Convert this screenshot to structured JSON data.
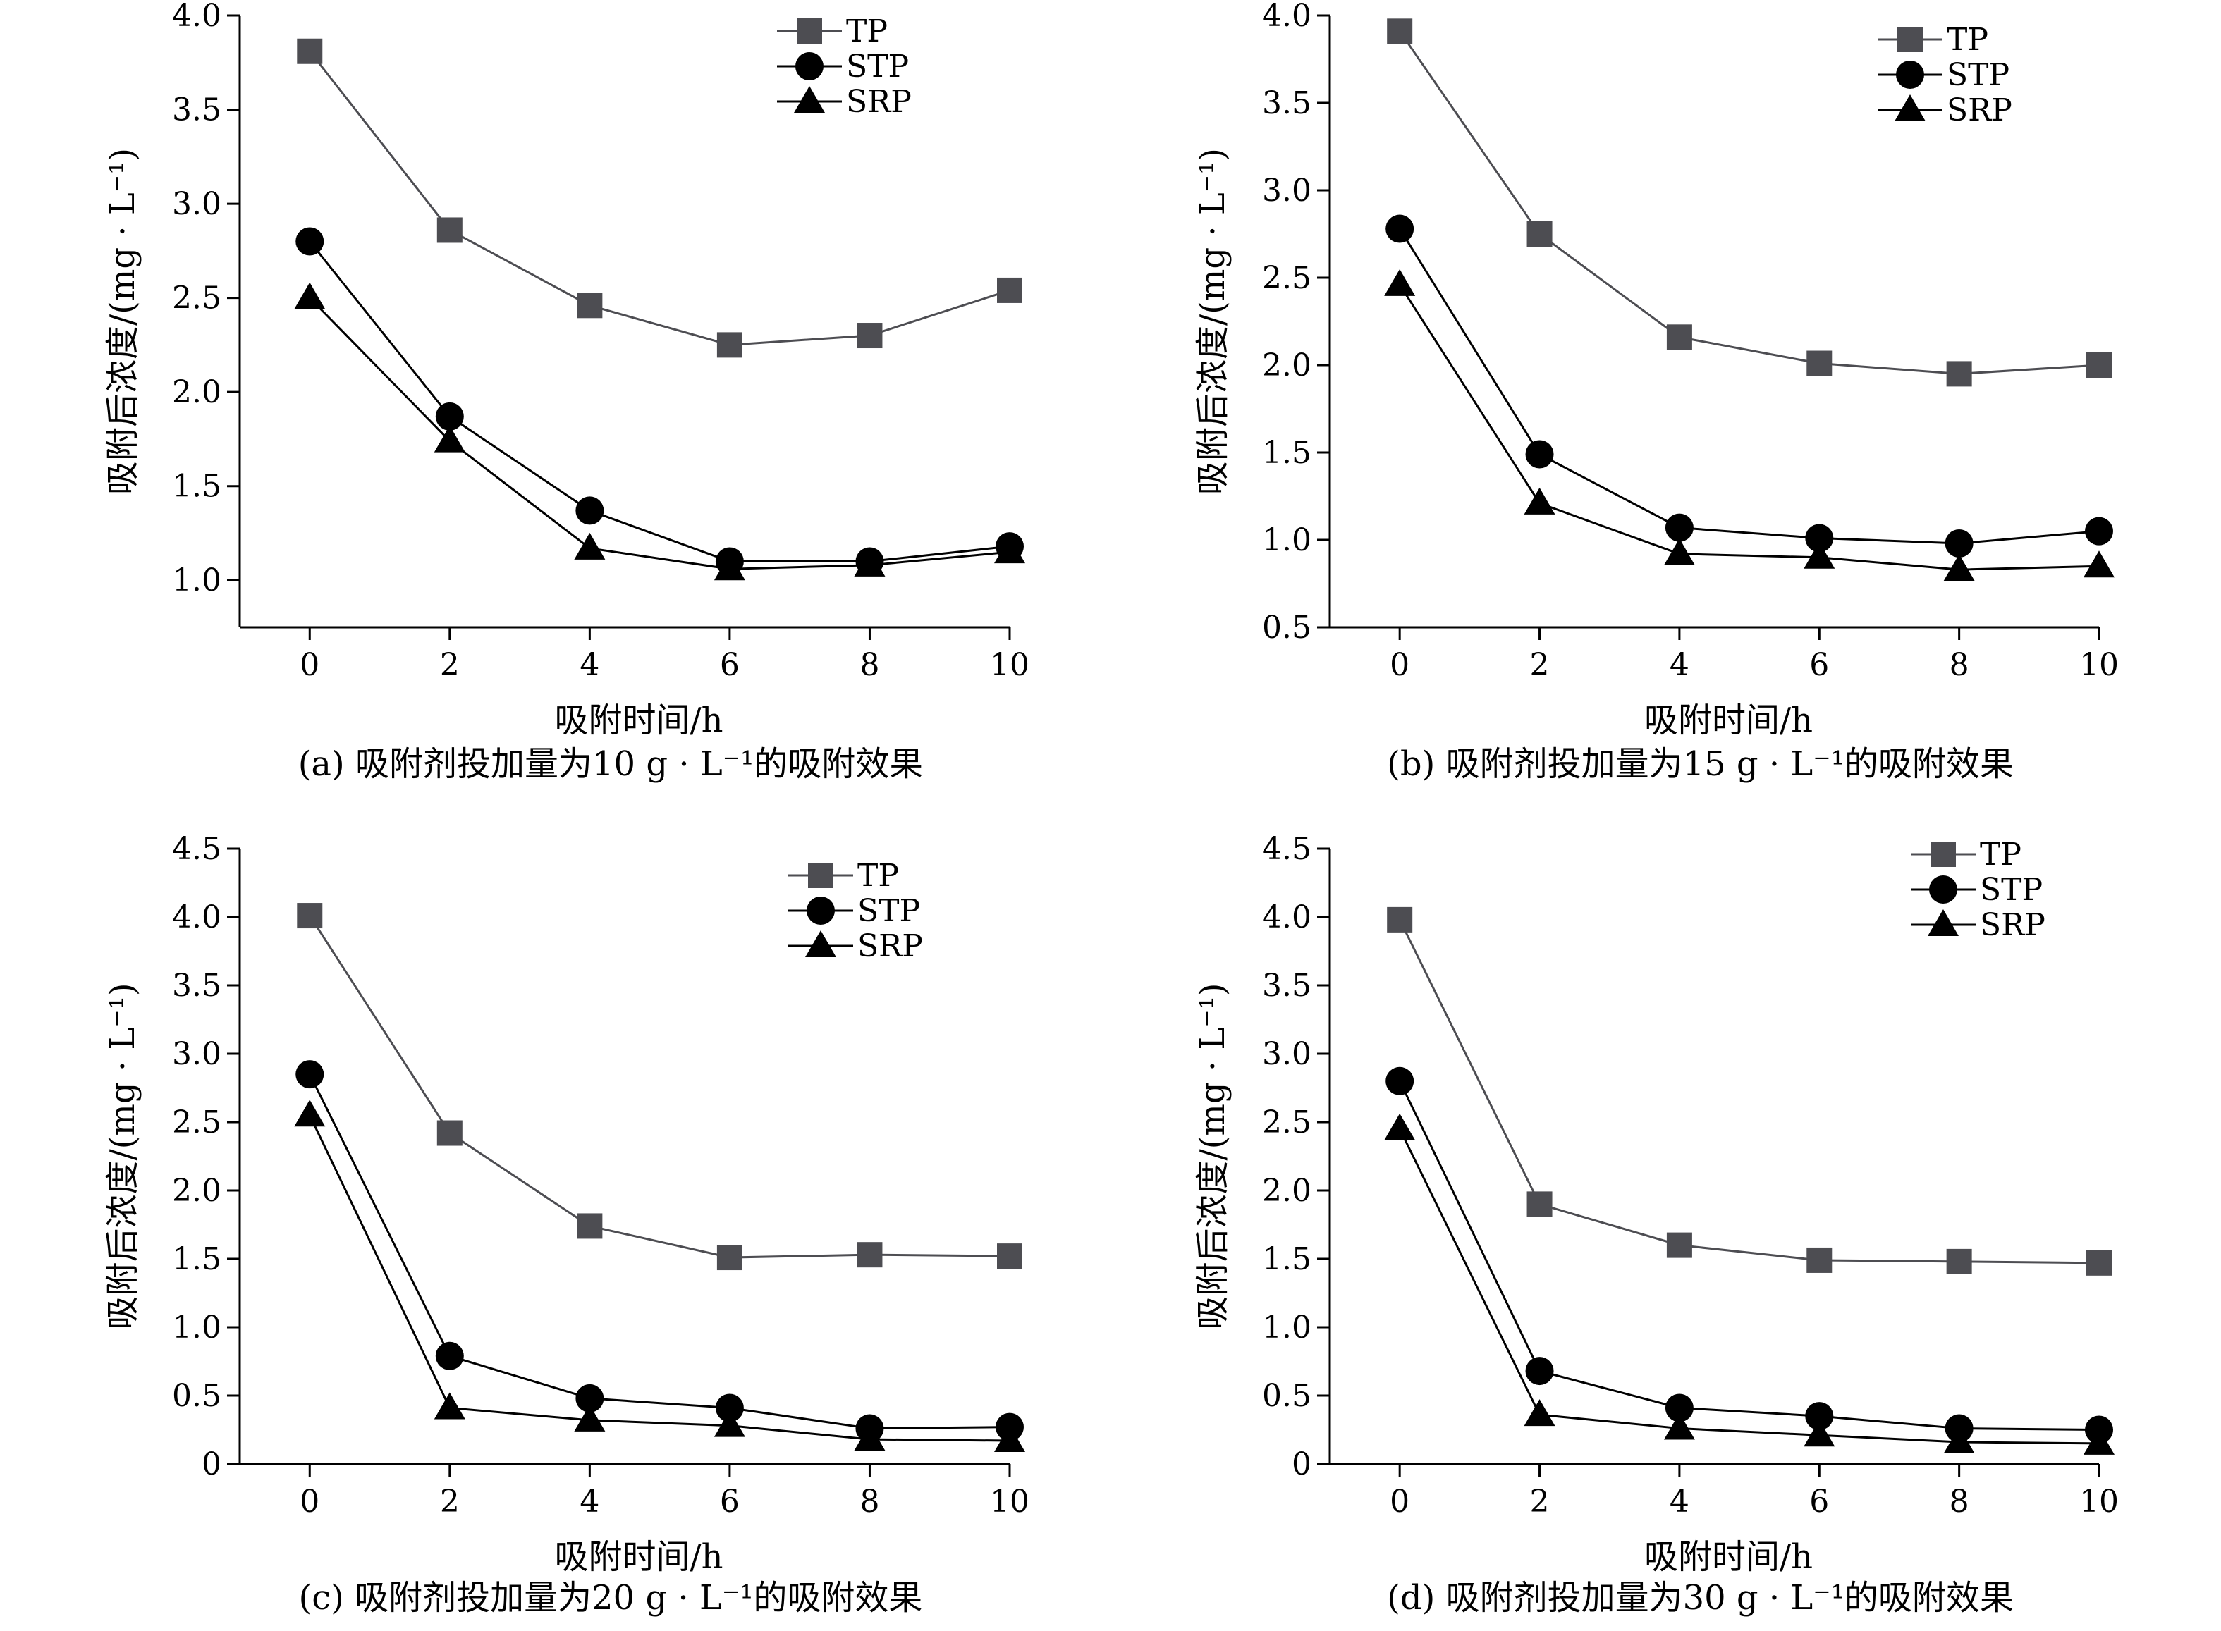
{
  "chart_data": [
    {
      "type": "line",
      "caption": "(a) 吸附剂投加量为10 g · L⁻¹的吸附效果",
      "xlabel": "吸附时间/h",
      "ylabel": "吸附后浓度/(mg · L⁻¹)",
      "x": [
        0,
        2,
        4,
        6,
        8,
        10
      ],
      "x_ticks": [
        "0",
        "2",
        "4",
        "6",
        "8",
        "10"
      ],
      "xlim": [
        -1,
        10
      ],
      "ylim": [
        0.75,
        4.0
      ],
      "y_ticks": [
        "1.0",
        "1.5",
        "2.0",
        "2.5",
        "3.0",
        "3.5",
        "4.0"
      ],
      "y_tick_values": [
        1.0,
        1.5,
        2.0,
        2.5,
        3.0,
        3.5,
        4.0
      ],
      "legend_position": "top-right",
      "series": [
        {
          "name": "TP",
          "marker": "square",
          "color": "#4d4d52",
          "values": [
            3.81,
            2.86,
            2.46,
            2.25,
            2.3,
            2.54
          ]
        },
        {
          "name": "STP",
          "marker": "circle",
          "color": "#000000",
          "values": [
            2.8,
            1.87,
            1.37,
            1.1,
            1.1,
            1.18
          ]
        },
        {
          "name": "SRP",
          "marker": "triangle",
          "color": "#000000",
          "values": [
            2.5,
            1.74,
            1.17,
            1.06,
            1.08,
            1.15
          ]
        }
      ]
    },
    {
      "type": "line",
      "caption": "(b) 吸附剂投加量为15 g · L⁻¹的吸附效果",
      "xlabel": "吸附时间/h",
      "ylabel": "吸附后浓度/(mg · L⁻¹)",
      "x": [
        0,
        2,
        4,
        6,
        8,
        10
      ],
      "x_ticks": [
        "0",
        "2",
        "4",
        "6",
        "8",
        "10"
      ],
      "xlim": [
        -1,
        10
      ],
      "ylim": [
        0.5,
        4.0
      ],
      "y_ticks": [
        "0.5",
        "1.0",
        "1.5",
        "2.0",
        "2.5",
        "3.0",
        "3.5",
        "4.0"
      ],
      "y_tick_values": [
        0.5,
        1.0,
        1.5,
        2.0,
        2.5,
        3.0,
        3.5,
        4.0
      ],
      "legend_position": "top-right",
      "series": [
        {
          "name": "TP",
          "marker": "square",
          "color": "#4d4d52",
          "values": [
            3.91,
            2.75,
            2.16,
            2.01,
            1.95,
            2.0
          ]
        },
        {
          "name": "STP",
          "marker": "circle",
          "color": "#000000",
          "values": [
            2.78,
            1.49,
            1.07,
            1.01,
            0.98,
            1.05
          ]
        },
        {
          "name": "SRP",
          "marker": "triangle",
          "color": "#000000",
          "values": [
            2.46,
            1.21,
            0.92,
            0.9,
            0.83,
            0.85
          ]
        }
      ]
    },
    {
      "type": "line",
      "caption": "(c) 吸附剂投加量为20 g · L⁻¹的吸附效果",
      "xlabel": "吸附时间/h",
      "ylabel": "吸附后浓度/(mg · L⁻¹)",
      "x": [
        0,
        2,
        4,
        6,
        8,
        10
      ],
      "x_ticks": [
        "0",
        "2",
        "4",
        "6",
        "8",
        "10"
      ],
      "xlim": [
        -1,
        10
      ],
      "ylim": [
        0,
        4.5
      ],
      "y_ticks": [
        "0",
        "0.5",
        "1.0",
        "1.5",
        "2.0",
        "2.5",
        "3.0",
        "3.5",
        "4.0",
        "4.5"
      ],
      "y_tick_values": [
        0,
        0.5,
        1.0,
        1.5,
        2.0,
        2.5,
        3.0,
        3.5,
        4.0,
        4.5
      ],
      "legend_position": "top-right",
      "series": [
        {
          "name": "TP",
          "marker": "square",
          "color": "#4d4d52",
          "values": [
            4.01,
            2.42,
            1.74,
            1.51,
            1.53,
            1.52
          ]
        },
        {
          "name": "STP",
          "marker": "circle",
          "color": "#000000",
          "values": [
            2.85,
            0.79,
            0.48,
            0.41,
            0.26,
            0.27
          ]
        },
        {
          "name": "SRP",
          "marker": "triangle",
          "color": "#000000",
          "values": [
            2.55,
            0.41,
            0.32,
            0.28,
            0.18,
            0.17
          ]
        }
      ]
    },
    {
      "type": "line",
      "caption": "(d) 吸附剂投加量为30 g · L⁻¹的吸附效果",
      "xlabel": "吸附时间/h",
      "ylabel": "吸附后浓度/(mg · L⁻¹)",
      "x": [
        0,
        2,
        4,
        6,
        8,
        10
      ],
      "x_ticks": [
        "0",
        "2",
        "4",
        "6",
        "8",
        "10"
      ],
      "xlim": [
        -1,
        10
      ],
      "ylim": [
        0,
        4.5
      ],
      "y_ticks": [
        "0",
        "0.5",
        "1.0",
        "1.5",
        "2.0",
        "2.5",
        "3.0",
        "3.5",
        "4.0",
        "4.5"
      ],
      "y_tick_values": [
        0,
        0.5,
        1.0,
        1.5,
        2.0,
        2.5,
        3.0,
        3.5,
        4.0,
        4.5
      ],
      "legend_position": "top-right",
      "series": [
        {
          "name": "TP",
          "marker": "square",
          "color": "#4d4d52",
          "values": [
            3.98,
            1.9,
            1.6,
            1.49,
            1.48,
            1.47
          ]
        },
        {
          "name": "STP",
          "marker": "circle",
          "color": "#000000",
          "values": [
            2.8,
            0.68,
            0.41,
            0.35,
            0.26,
            0.25
          ]
        },
        {
          "name": "SRP",
          "marker": "triangle",
          "color": "#000000",
          "values": [
            2.45,
            0.36,
            0.26,
            0.21,
            0.16,
            0.15
          ]
        }
      ]
    }
  ]
}
